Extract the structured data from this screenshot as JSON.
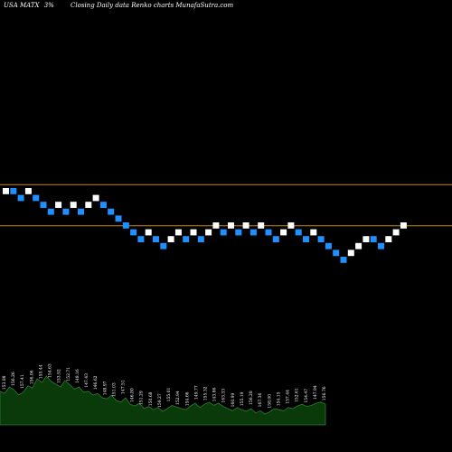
{
  "header": {
    "ticker": "USA MATX",
    "percent": "3%",
    "description": "Closing Daily data  Renko  charts MunafaSutra.com"
  },
  "colors": {
    "background": "#000000",
    "up_brick": "#ffffff",
    "down_brick": "#1e90ff",
    "level_line": "#c8881a",
    "volume_fill": "#0a3a0a",
    "volume_stroke": "#2e7d2e"
  },
  "chart_data": [
    {
      "type": "renko",
      "brick_size_percent": 3,
      "bricks": [
        {
          "dir": "up",
          "level": 0
        },
        {
          "dir": "down",
          "level": 0
        },
        {
          "dir": "down",
          "level": -1
        },
        {
          "dir": "up",
          "level": 0
        },
        {
          "dir": "down",
          "level": -1
        },
        {
          "dir": "down",
          "level": -2
        },
        {
          "dir": "down",
          "level": -3
        },
        {
          "dir": "up",
          "level": -2
        },
        {
          "dir": "down",
          "level": -3
        },
        {
          "dir": "up",
          "level": -2
        },
        {
          "dir": "down",
          "level": -3
        },
        {
          "dir": "up",
          "level": -2
        },
        {
          "dir": "up",
          "level": -1
        },
        {
          "dir": "down",
          "level": -2
        },
        {
          "dir": "down",
          "level": -3
        },
        {
          "dir": "down",
          "level": -4
        },
        {
          "dir": "down",
          "level": -5
        },
        {
          "dir": "down",
          "level": -6
        },
        {
          "dir": "down",
          "level": -7
        },
        {
          "dir": "up",
          "level": -6
        },
        {
          "dir": "down",
          "level": -7
        },
        {
          "dir": "down",
          "level": -8
        },
        {
          "dir": "up",
          "level": -7
        },
        {
          "dir": "up",
          "level": -6
        },
        {
          "dir": "down",
          "level": -7
        },
        {
          "dir": "up",
          "level": -6
        },
        {
          "dir": "down",
          "level": -7
        },
        {
          "dir": "up",
          "level": -6
        },
        {
          "dir": "up",
          "level": -5
        },
        {
          "dir": "down",
          "level": -6
        },
        {
          "dir": "up",
          "level": -5
        },
        {
          "dir": "down",
          "level": -6
        },
        {
          "dir": "up",
          "level": -5
        },
        {
          "dir": "down",
          "level": -6
        },
        {
          "dir": "up",
          "level": -5
        },
        {
          "dir": "down",
          "level": -6
        },
        {
          "dir": "down",
          "level": -7
        },
        {
          "dir": "up",
          "level": -6
        },
        {
          "dir": "up",
          "level": -5
        },
        {
          "dir": "down",
          "level": -6
        },
        {
          "dir": "down",
          "level": -7
        },
        {
          "dir": "up",
          "level": -6
        },
        {
          "dir": "down",
          "level": -7
        },
        {
          "dir": "down",
          "level": -8
        },
        {
          "dir": "down",
          "level": -9
        },
        {
          "dir": "down",
          "level": -10
        },
        {
          "dir": "up",
          "level": -9
        },
        {
          "dir": "up",
          "level": -8
        },
        {
          "dir": "up",
          "level": -7
        },
        {
          "dir": "down",
          "level": -7
        },
        {
          "dir": "down",
          "level": -8
        },
        {
          "dir": "up",
          "level": -7
        },
        {
          "dir": "up",
          "level": -6
        },
        {
          "dir": "up",
          "level": -5
        }
      ],
      "reference_levels": [
        0.5,
        -5.5
      ]
    },
    {
      "type": "area",
      "volume_relative": [
        0.62,
        0.58,
        0.7,
        0.65,
        0.55,
        0.6,
        0.72,
        0.68,
        0.85,
        0.78,
        0.9,
        0.8,
        0.75,
        0.7,
        0.82,
        0.74,
        0.66,
        0.7,
        0.6,
        0.62,
        0.55,
        0.58,
        0.5,
        0.48,
        0.55,
        0.45,
        0.42,
        0.5,
        0.38,
        0.35,
        0.4,
        0.3,
        0.34,
        0.28,
        0.32,
        0.25,
        0.3,
        0.36,
        0.33,
        0.3,
        0.28,
        0.35,
        0.4,
        0.32,
        0.38,
        0.42,
        0.36,
        0.4,
        0.34,
        0.3,
        0.26,
        0.32,
        0.28,
        0.25,
        0.3,
        0.22,
        0.26,
        0.2,
        0.24,
        0.3,
        0.28,
        0.26,
        0.32,
        0.3,
        0.35,
        0.38,
        0.34,
        0.36,
        0.4,
        0.42,
        0.38
      ],
      "labels": [
        "153.88",
        "156.26",
        "157.41",
        "156.06",
        "155.44",
        "154.63",
        "153.92",
        "152.71",
        "148.16",
        "147.43",
        "146.62",
        "148.97",
        "151.03",
        "147.51",
        "146.80",
        "151.29",
        "150.68",
        "159.27",
        "155.01",
        "152.94",
        "154.66",
        "149.77",
        "155.32",
        "143.86",
        "163.33",
        "160.99",
        "155.19",
        "156.28",
        "167.36",
        "158.00",
        "154.15",
        "157.44",
        "152.61",
        "154.47",
        "147.94",
        "156.76"
      ]
    }
  ]
}
